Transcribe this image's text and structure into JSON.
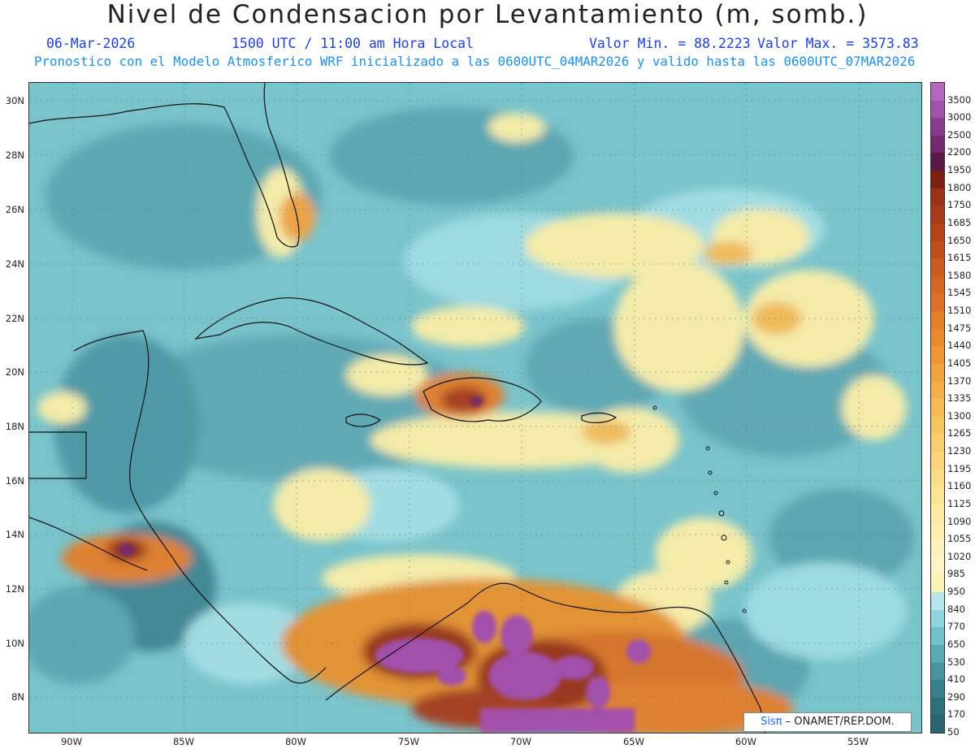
{
  "header": {
    "title": "Nivel de Condensacion por Levantamiento (m, somb.)",
    "date": "06-Mar-2026",
    "time": "1500 UTC / 11:00 am Hora Local",
    "min": "Valor Min. = 88.2223",
    "max": "Valor Max. = 3573.83",
    "description": "Pronostico con el Modelo Atmosferico WRF inicializado a las 0600UTC_04MAR2026 y valido hasta las  0600UTC_07MAR2026"
  },
  "map": {
    "lat_labels": [
      "30N",
      "28N",
      "26N",
      "24N",
      "22N",
      "20N",
      "18N",
      "16N",
      "14N",
      "12N",
      "10N",
      "8N"
    ],
    "lon_labels": [
      "90W",
      "85W",
      "80W",
      "75W",
      "70W",
      "65W",
      "60W",
      "55W"
    ]
  },
  "colorbar": {
    "labels": [
      "3500",
      "3000",
      "2500",
      "2200",
      "1950",
      "1800",
      "1750",
      "1685",
      "1650",
      "1615",
      "1580",
      "1545",
      "1510",
      "1475",
      "1440",
      "1405",
      "1370",
      "1335",
      "1300",
      "1265",
      "1230",
      "1195",
      "1160",
      "1125",
      "1090",
      "1055",
      "1020",
      "985",
      "950",
      "840",
      "770",
      "650",
      "530",
      "410",
      "290",
      "170",
      "50"
    ],
    "colors": [
      "#b565bd",
      "#a250ab",
      "#8a3b8f",
      "#742a6a",
      "#5a1a48",
      "#7a1f12",
      "#9a3218",
      "#a83a1a",
      "#b54419",
      "#c04e1b",
      "#ca5a1e",
      "#d46622",
      "#dc7226",
      "#e47e2b",
      "#ea8a30",
      "#ef9737",
      "#f3a340",
      "#f5af4a",
      "#f7ba55",
      "#f8c460",
      "#f9cd6c",
      "#fad57a",
      "#fbdd88",
      "#fce497",
      "#fdeaa5",
      "#fdeeb2",
      "#fef1bd",
      "#fef4c8",
      "#fbf3b6",
      "#b6e6ea",
      "#8fd6df",
      "#70c2cc",
      "#5aaab6",
      "#4793a0",
      "#3a7f8c",
      "#2f6f7c",
      "#2a6472"
    ]
  },
  "credit": {
    "brand": "Sisπ",
    "text": "– ONAMET/REP.DOM."
  }
}
